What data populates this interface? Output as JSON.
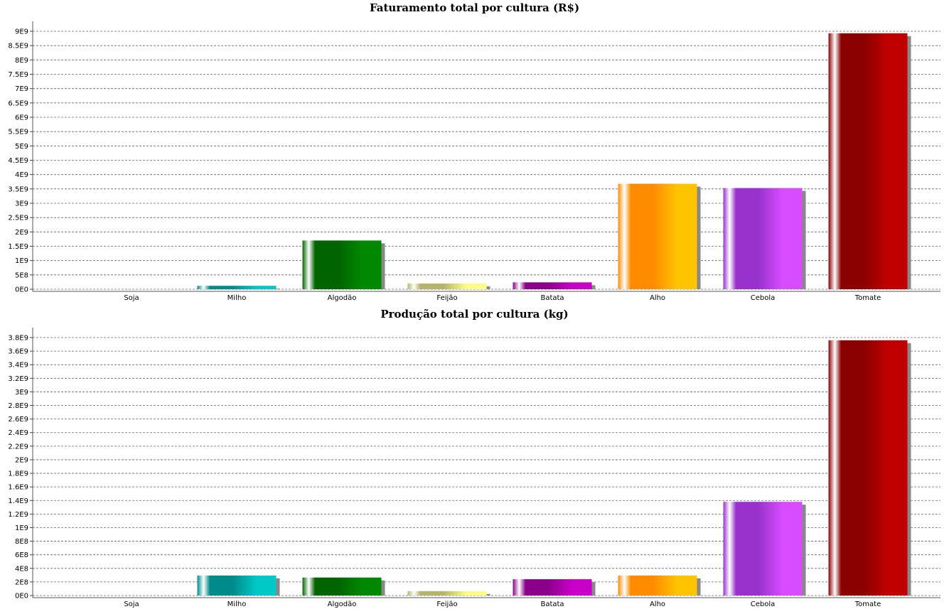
{
  "chart_data": [
    {
      "type": "bar",
      "title": "Faturamento total por cultura (R$)",
      "categories": [
        "Soja",
        "Milho",
        "Algodão",
        "Feijão",
        "Batata",
        "Alho",
        "Cebola",
        "Tomate"
      ],
      "values": [
        0,
        120000000,
        1700000000,
        200000000,
        240000000,
        3680000000,
        3530000000,
        8930000000
      ],
      "ylim": [
        0,
        9000000000
      ],
      "yticks": [
        0,
        500000000,
        1000000000,
        1500000000,
        2000000000,
        2500000000,
        3000000000,
        3500000000,
        4000000000,
        4500000000,
        5000000000,
        5500000000,
        6000000000,
        6500000000,
        7000000000,
        7500000000,
        8000000000,
        8500000000,
        9000000000
      ],
      "yticklabels": [
        "0E0",
        "5E8",
        "1E9",
        "1.5E9",
        "2E9",
        "2.5E9",
        "3E9",
        "3.5E9",
        "4E9",
        "4.5E9",
        "5E9",
        "5.5E9",
        "6E9",
        "6.5E9",
        "7E9",
        "7.5E9",
        "8E9",
        "8.5E9",
        "9E9"
      ],
      "grid": true,
      "xlabel": "",
      "ylabel": ""
    },
    {
      "type": "bar",
      "title": "Produção total por cultura (kg)",
      "categories": [
        "Soja",
        "Milho",
        "Algodão",
        "Feijão",
        "Batata",
        "Alho",
        "Cebola",
        "Tomate"
      ],
      "values": [
        0,
        295000000,
        265000000,
        65000000,
        240000000,
        295000000,
        1380000000,
        3760000000
      ],
      "ylim": [
        0,
        3800000000
      ],
      "yticks": [
        0,
        200000000,
        400000000,
        600000000,
        800000000,
        1000000000,
        1200000000,
        1400000000,
        1600000000,
        1800000000,
        2000000000,
        2200000000,
        2400000000,
        2600000000,
        2800000000,
        3000000000,
        3200000000,
        3400000000,
        3600000000,
        3800000000
      ],
      "yticklabels": [
        "0E0",
        "2E8",
        "4E8",
        "6E8",
        "8E8",
        "1E9",
        "1.2E9",
        "1.4E9",
        "1.6E9",
        "1.8E9",
        "2E9",
        "2.2E9",
        "2.4E9",
        "2.6E9",
        "2.8E9",
        "3E9",
        "3.2E9",
        "3.4E9",
        "3.6E9",
        "3.8E9"
      ],
      "grid": true,
      "xlabel": "",
      "ylabel": ""
    }
  ],
  "colors": {
    "Soja": "#3050c0",
    "Milho": "#00c8c8",
    "Algodão": "#008800",
    "Feijão": "#ffff88",
    "Batata": "#c800c8",
    "Alho": "#ffc400",
    "Cebola": "#d84cff",
    "Tomate": "#c00000"
  },
  "colors_dark": {
    "Soja": "#203890",
    "Milho": "#008b8b",
    "Algodão": "#006400",
    "Feijão": "#b4b46c",
    "Batata": "#8b008b",
    "Alho": "#ff8c00",
    "Cebola": "#9932cc",
    "Tomate": "#8b0000"
  }
}
